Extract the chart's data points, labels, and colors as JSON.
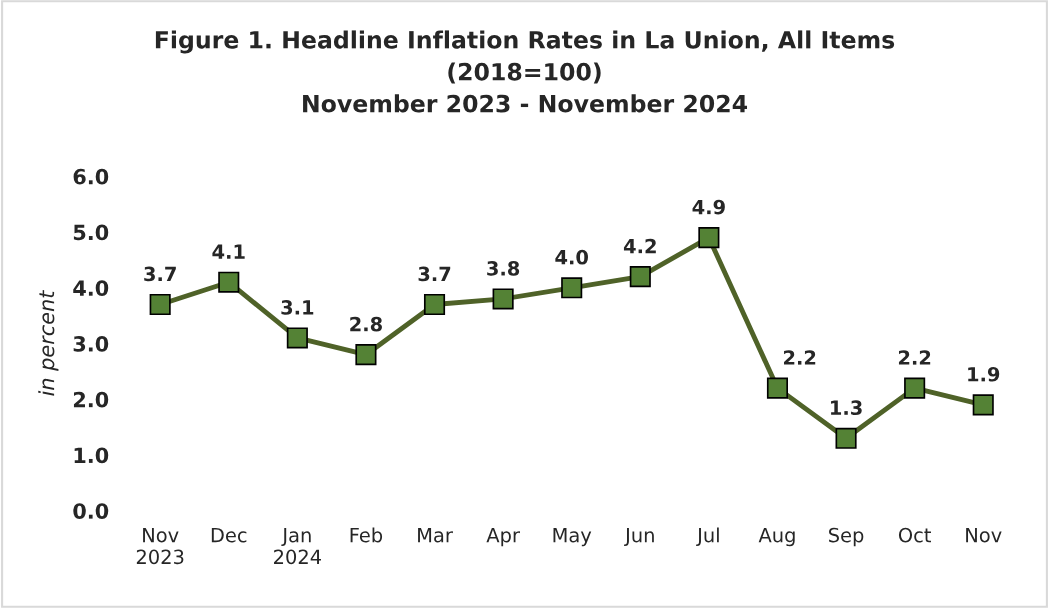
{
  "chart_data": {
    "type": "line",
    "title": "Figure 1. Headline Inflation Rates in La Union, All Items\n(2018=100)\nNovember 2023 - November 2024",
    "ylabel": "in percent",
    "categories": [
      "Nov\n2023",
      "Dec",
      "Jan\n2024",
      "Feb",
      "Mar",
      "Apr",
      "May",
      "Jun",
      "Jul",
      "Aug",
      "Sep",
      "Oct",
      "Nov"
    ],
    "series": [
      {
        "color": "#4f6228",
        "values": [
          3.7,
          4.1,
          3.1,
          2.8,
          3.7,
          3.8,
          4.0,
          4.2,
          4.9,
          2.2,
          1.3,
          2.2,
          1.9
        ]
      }
    ],
    "ylim": [
      0,
      6
    ],
    "yticks": [
      {
        "value": 0,
        "label": "0.0"
      },
      {
        "value": 1,
        "label": "1.0"
      },
      {
        "value": 2,
        "label": "2.0"
      },
      {
        "value": 3,
        "label": "3.0"
      },
      {
        "value": 4,
        "label": "4.0"
      },
      {
        "value": 5,
        "label": "5.0"
      },
      {
        "value": 6,
        "label": "6.0"
      }
    ],
    "value_labels": [
      "3.7",
      "4.1",
      "3.1",
      "2.8",
      "3.7",
      "3.8",
      "4.0",
      "4.2",
      "4.9",
      "2.2",
      "1.3",
      "2.2",
      "1.9"
    ],
    "marker": "square",
    "line_style": "solid",
    "grid": false,
    "legend": false
  }
}
